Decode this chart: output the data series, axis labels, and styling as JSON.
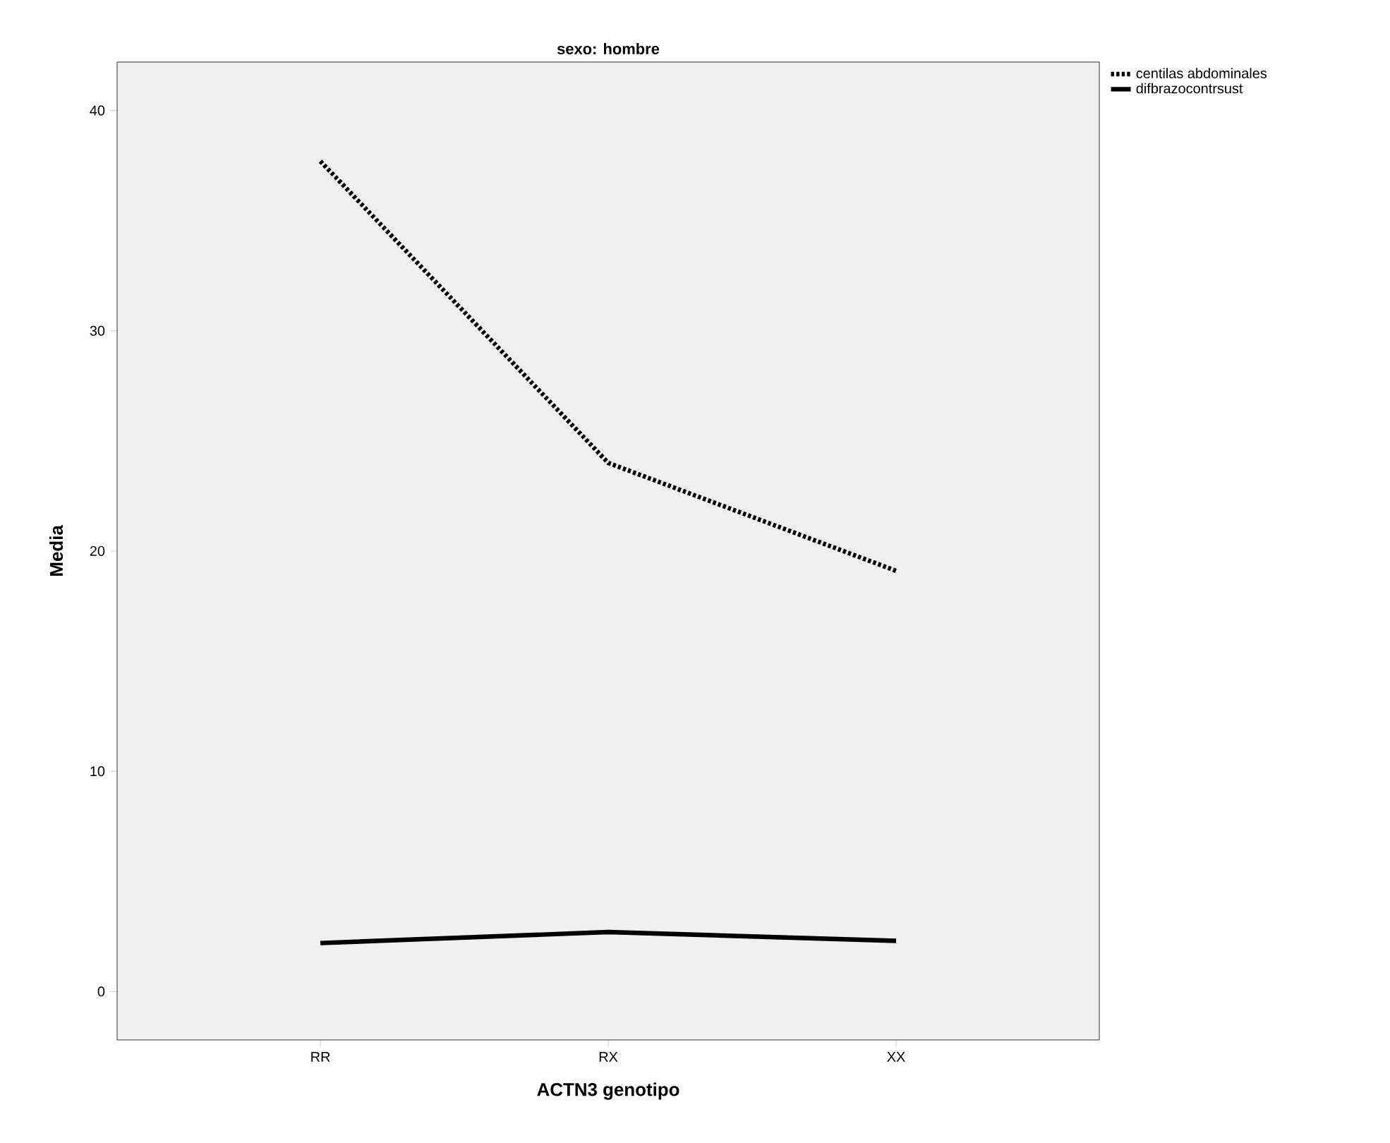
{
  "chart_data": {
    "type": "line",
    "title": "sexo: hombre",
    "xlabel": "ACTN3 genotipo",
    "ylabel": "Media",
    "categories": [
      "RR",
      "RX",
      "XX"
    ],
    "series": [
      {
        "name": "centilas abdominales",
        "color": "#000000",
        "line_style": "dotted",
        "values": [
          37.7,
          24.0,
          19.1
        ]
      },
      {
        "name": "difbrazocontrsust",
        "color": "#000000",
        "line_style": "solid",
        "values": [
          2.2,
          2.7,
          2.3
        ]
      }
    ],
    "ylim": [
      -2.2,
      42.2
    ],
    "yticks": [
      0,
      10,
      20,
      30,
      40
    ],
    "grid": false,
    "legend": "top right",
    "marker": "none"
  }
}
